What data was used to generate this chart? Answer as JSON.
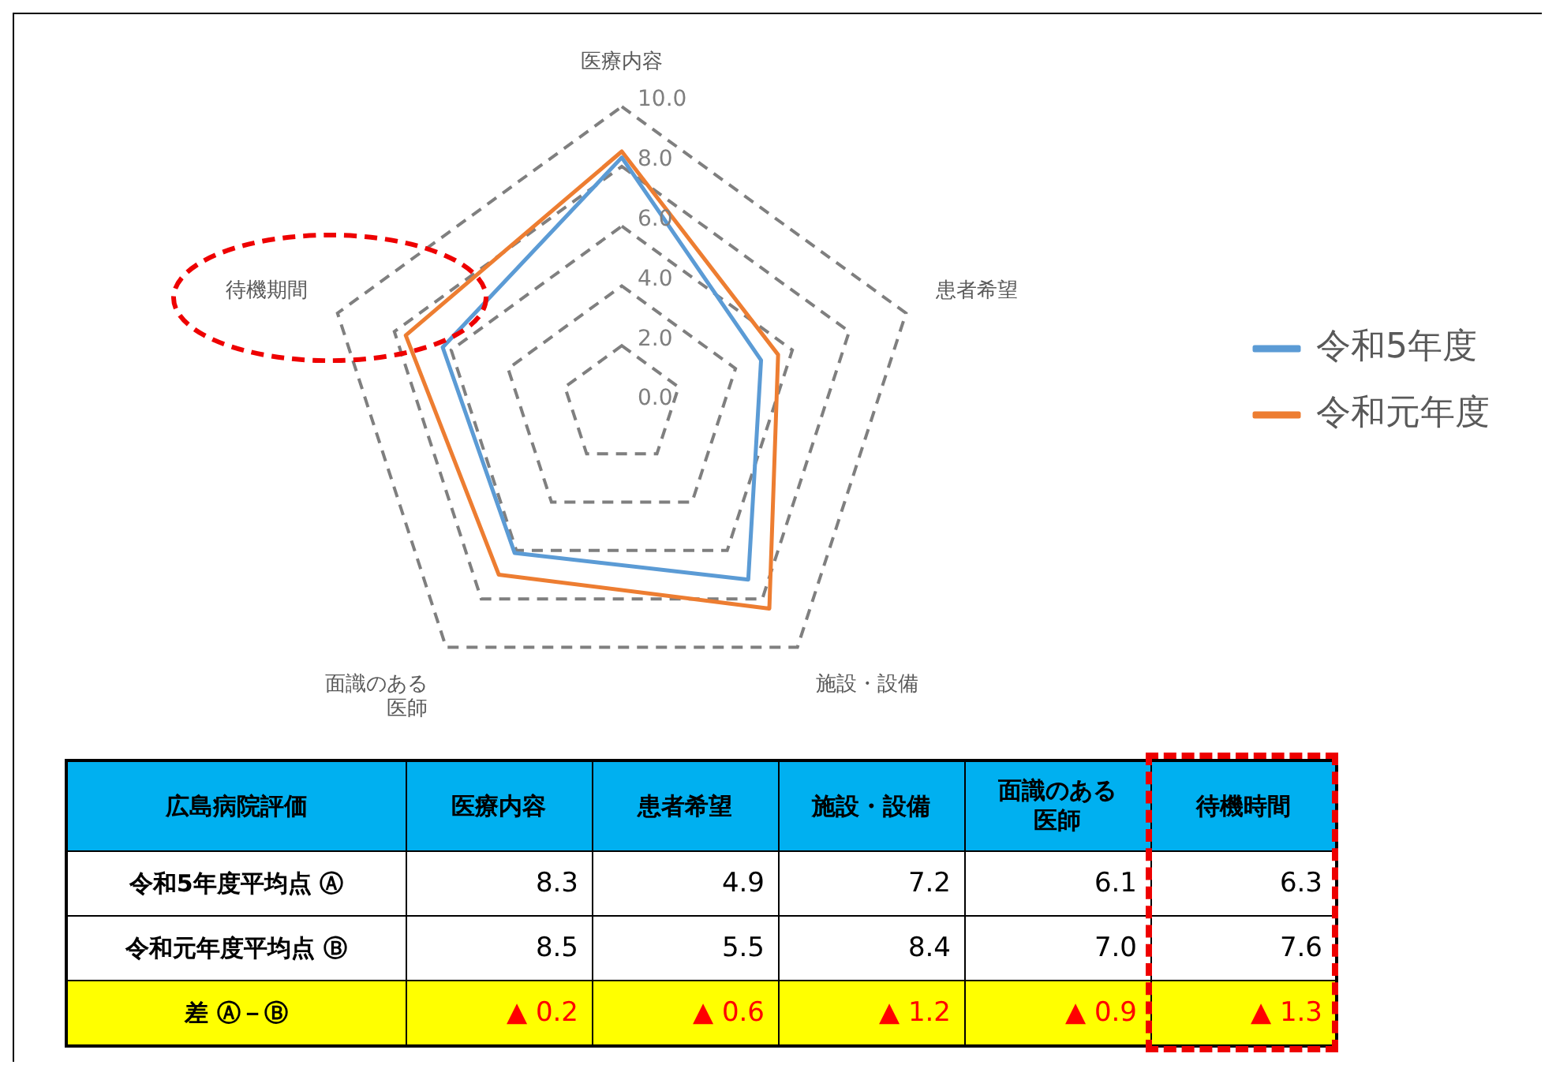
{
  "chart_data": {
    "type": "radar",
    "categories": [
      "医療内容",
      "患者希望",
      "施設・設備",
      "面識のある医師",
      "待機期間"
    ],
    "series": [
      {
        "name": "令和5年度",
        "color": "#5b9bd5",
        "values": [
          8.3,
          4.9,
          7.2,
          6.1,
          6.3
        ]
      },
      {
        "name": "令和元年度",
        "color": "#ed7d31",
        "values": [
          8.5,
          5.5,
          8.4,
          7.0,
          7.6
        ]
      }
    ],
    "ylim": [
      0,
      10
    ],
    "yticks": [
      {
        "value": 0,
        "label": "0.0"
      },
      {
        "value": 2,
        "label": "2.0"
      },
      {
        "value": 4,
        "label": "4.0"
      },
      {
        "value": 6,
        "label": "6.0"
      },
      {
        "value": 8,
        "label": "8.0"
      },
      {
        "value": 10,
        "label": "10.0"
      }
    ],
    "grid": true,
    "line_style": "solid",
    "marker": "none",
    "legend": "right",
    "annotations": [
      "広島病院評価",
      "待機時間",
      "令和5年度平均点 Ⓐ",
      "令和元年度平均点 Ⓑ",
      "差 Ⓐ－Ⓑ",
      "▲ 0.2",
      "▲ 0.6",
      "▲ 1.2",
      "▲ 0.9",
      "▲ 1.3",
      "8.3",
      "4.9",
      "7.2",
      "6.1",
      "6.3",
      "8.5",
      "5.5",
      "8.4",
      "7.0",
      "7.6"
    ]
  }
}
